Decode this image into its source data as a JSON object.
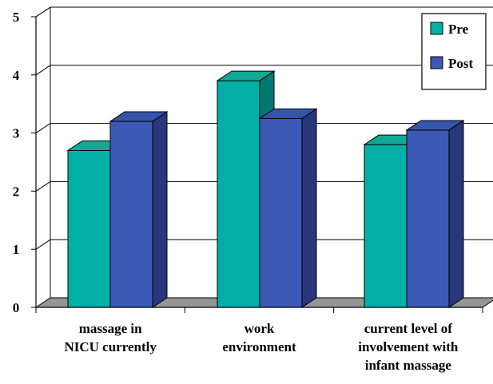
{
  "chart_data": {
    "type": "bar",
    "style": "3d-clustered-column",
    "categories": [
      [
        "massage in",
        "NICU currently"
      ],
      [
        "work",
        "environment"
      ],
      [
        "current level of",
        "involvement with",
        "infant massage"
      ]
    ],
    "series": [
      {
        "name": "Pre",
        "values": [
          2.7,
          3.9,
          2.8
        ],
        "color": "#00b0a6",
        "side_color": "#007a70",
        "top_color": "#13a896"
      },
      {
        "name": "Post",
        "values": [
          3.2,
          3.25,
          3.05
        ],
        "color": "#3b58b4",
        "side_color": "#28377a",
        "top_color": "#3355aa"
      }
    ],
    "ylim": [
      0,
      5
    ],
    "yticks": [
      "0",
      "1",
      "2",
      "3",
      "4",
      "5"
    ],
    "grid": true,
    "legend": "top-right",
    "floor_color": "#969696"
  }
}
